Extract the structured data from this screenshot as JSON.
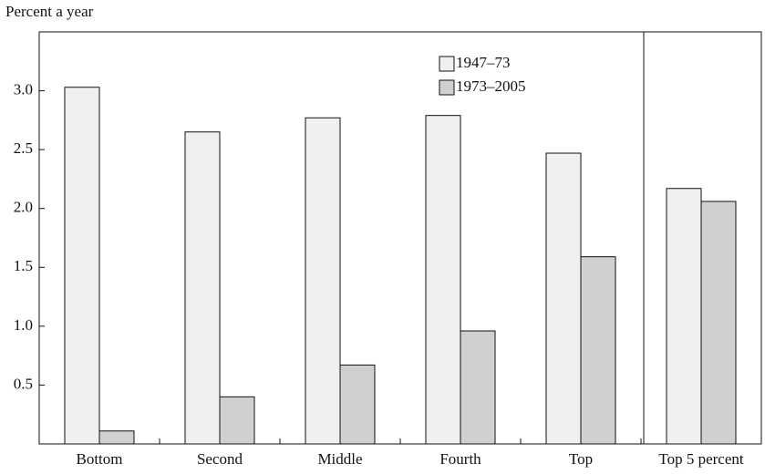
{
  "chart_data": {
    "type": "bar",
    "y_label": "Percent a year",
    "categories": [
      "Bottom",
      "Second",
      "Middle",
      "Fourth",
      "Top",
      "Top 5 percent"
    ],
    "series": [
      {
        "name": "1947–73",
        "color": "#f0f0f3",
        "values": [
          3.03,
          2.65,
          2.77,
          2.79,
          2.47,
          2.17
        ]
      },
      {
        "name": "1973–2005",
        "color": "#d0d0d0",
        "values": [
          0.11,
          0.4,
          0.67,
          0.96,
          1.59,
          2.06
        ]
      }
    ],
    "ylim": [
      0,
      3.5
    ],
    "yticks": [
      {
        "value": 0.5,
        "label": "0.5"
      },
      {
        "value": 1,
        "label": "1.0"
      },
      {
        "value": 1.5,
        "label": "1.5"
      },
      {
        "value": 2,
        "label": "2.0"
      },
      {
        "value": 2.5,
        "label": "2.5"
      },
      {
        "value": 3,
        "label": "3.0"
      }
    ],
    "grid": false
  }
}
